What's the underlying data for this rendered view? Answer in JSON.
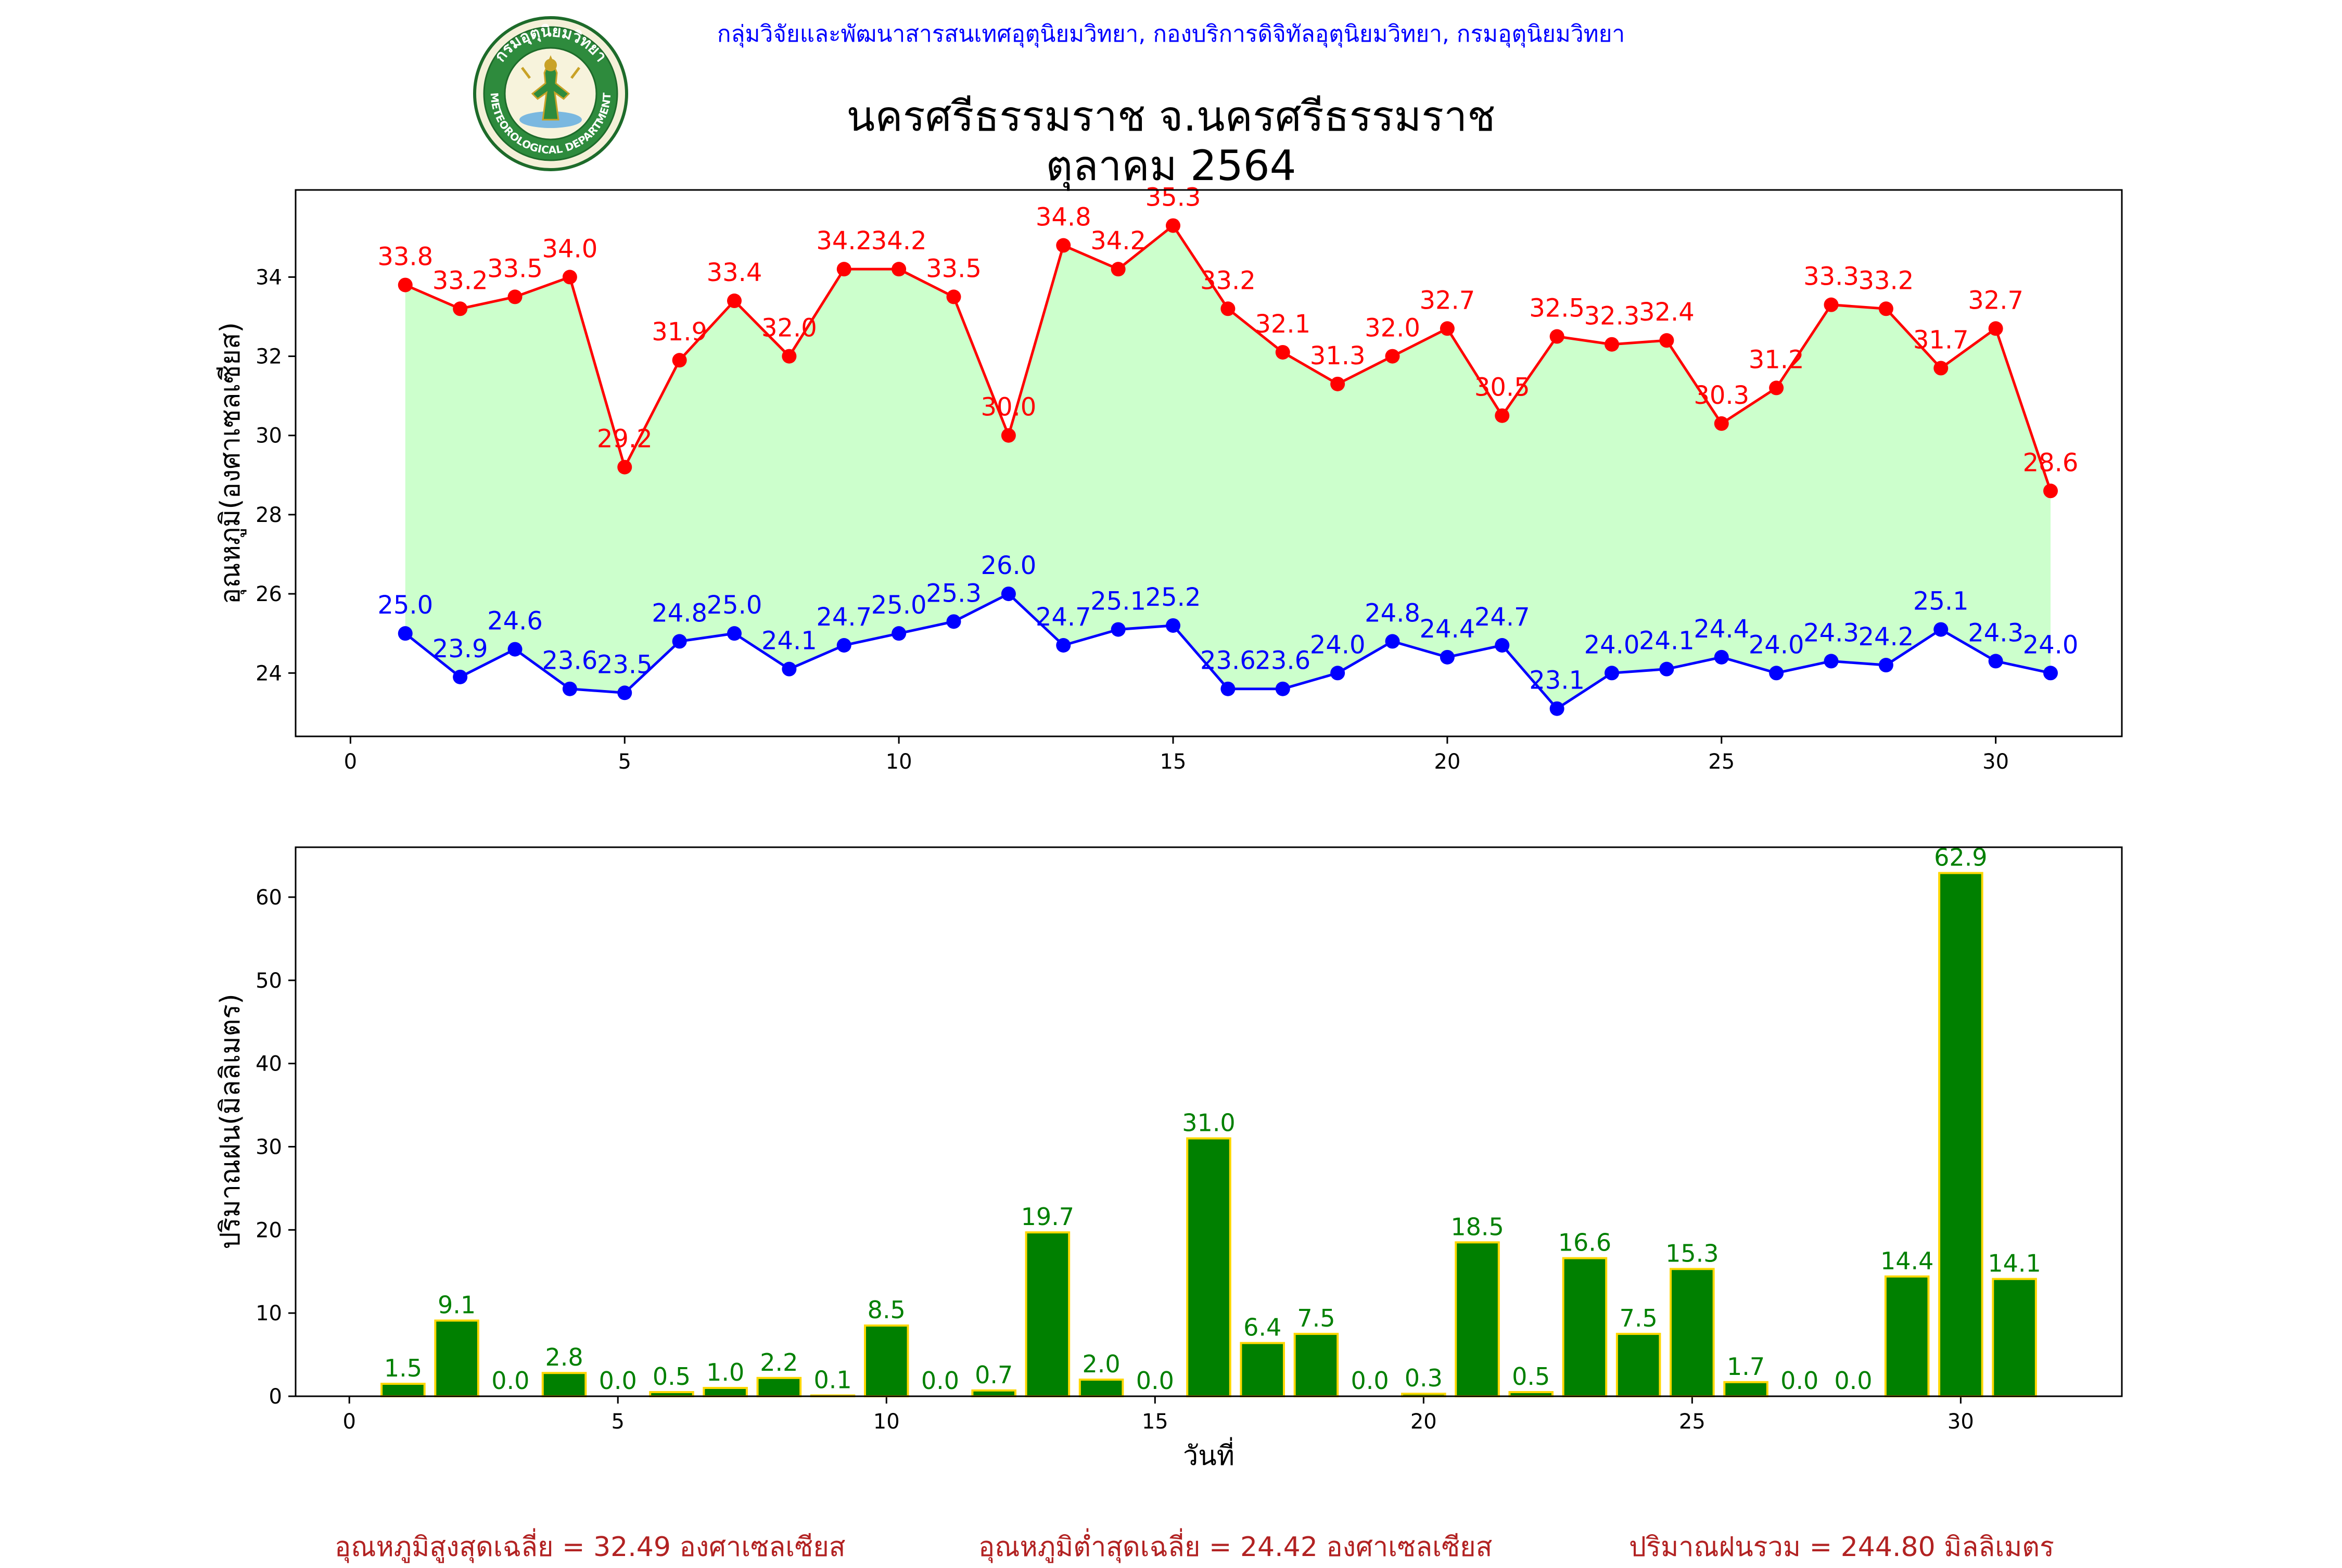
{
  "header": {
    "org_line": "กลุ่มวิจัยและพัฒนาสารสนเทศอุตุนิยมวิทยา, กองบริการดิจิทัลอุตุนิยมวิทยา, กรมอุตุนิยมวิทยา",
    "title": "นครศรีธรรมราช จ.นครศรีธรรมราช",
    "subtitle": "ตุลาคม 2564"
  },
  "logo": {
    "ring_text_top": "กรมอุตุนิยมวิทยา",
    "ring_text_bottom": "METEOROLOGICAL DEPARTMENT"
  },
  "colors": {
    "max_temp": "#ff0000",
    "min_temp": "#0000ff",
    "temp_fill": "#ccffcc",
    "rain_bar": "#008000",
    "rain_edge": "#ffd700",
    "rain_label": "#008000",
    "org_line": "#0000ff",
    "footer": "#b22222"
  },
  "chart_data": [
    {
      "type": "line",
      "ylabel": "อุณหภูมิ(องศาเซลเซียส)",
      "xlabel": "",
      "xlim": [
        -1,
        32.3
      ],
      "ylim": [
        22.4,
        36.2
      ],
      "xticks": [
        0,
        5,
        10,
        15,
        20,
        25,
        30
      ],
      "yticks": [
        24,
        26,
        28,
        30,
        32,
        34
      ],
      "grid": false,
      "fill_between": true,
      "x": [
        1,
        2,
        3,
        4,
        5,
        6,
        7,
        8,
        9,
        10,
        11,
        12,
        13,
        14,
        15,
        16,
        17,
        18,
        19,
        20,
        21,
        22,
        23,
        24,
        25,
        26,
        27,
        28,
        29,
        30,
        31
      ],
      "series": [
        {
          "key": "max",
          "color": "#ff0000",
          "values": [
            33.8,
            33.2,
            33.5,
            34.0,
            29.2,
            31.9,
            33.4,
            32.0,
            34.2,
            34.2,
            33.5,
            30.0,
            34.8,
            34.2,
            35.3,
            33.2,
            32.1,
            31.3,
            32.0,
            32.7,
            30.5,
            32.5,
            32.3,
            32.4,
            30.3,
            31.2,
            33.3,
            33.2,
            31.7,
            32.7,
            28.6
          ]
        },
        {
          "key": "min",
          "color": "#0000ff",
          "values": [
            25.0,
            23.9,
            24.6,
            23.6,
            23.5,
            24.8,
            25.0,
            24.1,
            24.7,
            25.0,
            25.3,
            26.0,
            24.7,
            25.1,
            25.2,
            23.6,
            23.6,
            24.0,
            24.8,
            24.4,
            24.7,
            23.1,
            24.0,
            24.1,
            24.4,
            24.0,
            24.3,
            24.2,
            25.1,
            24.3,
            24.0
          ]
        }
      ]
    },
    {
      "type": "bar",
      "ylabel": "ปริมาณฝน(มิลลิเมตร)",
      "xlabel": "วันที่",
      "xlim": [
        -1,
        33
      ],
      "ylim": [
        0,
        66
      ],
      "xticks": [
        0,
        5,
        10,
        15,
        20,
        25,
        30
      ],
      "yticks": [
        0,
        10,
        20,
        30,
        40,
        50,
        60
      ],
      "grid": false,
      "x": [
        1,
        2,
        3,
        4,
        5,
        6,
        7,
        8,
        9,
        10,
        11,
        12,
        13,
        14,
        15,
        16,
        17,
        18,
        19,
        20,
        21,
        22,
        23,
        24,
        25,
        26,
        27,
        28,
        29,
        30,
        31
      ],
      "values": [
        1.5,
        9.1,
        0.0,
        2.8,
        0.0,
        0.5,
        1.0,
        2.2,
        0.1,
        8.5,
        0.0,
        0.7,
        19.7,
        2.0,
        0.0,
        31.0,
        6.4,
        7.5,
        0.0,
        0.3,
        18.5,
        0.5,
        16.6,
        7.5,
        15.3,
        1.7,
        0.0,
        0.0,
        14.4,
        62.9,
        14.1
      ],
      "bar_color": "#008000",
      "edge_color": "#ffd700"
    }
  ],
  "footer": {
    "avg_max": "อุณหภูมิสูงสุดเฉลี่ย = 32.49 องศาเซลเซียส",
    "avg_min": "อุณหภูมิต่ำสุดเฉลี่ย = 24.42 องศาเซลเซียส",
    "total_rain": "ปริมาณฝนรวม = 244.80 มิลลิเมตร"
  }
}
